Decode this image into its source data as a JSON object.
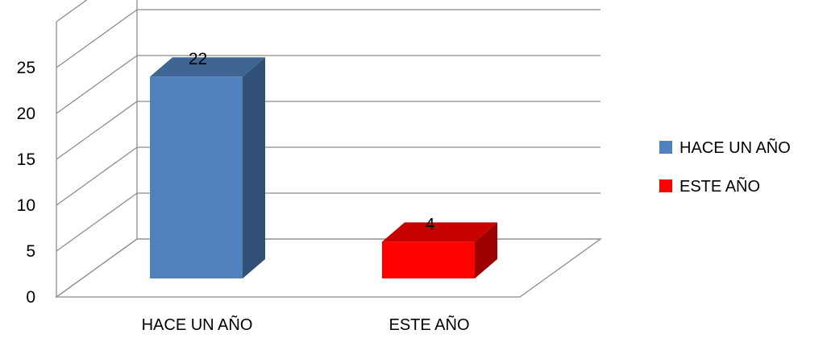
{
  "chart_data": {
    "type": "bar",
    "style": "3d-clustered-column",
    "categories": [
      "HACE UN AÑO",
      "ESTE AÑO"
    ],
    "values": [
      22,
      4
    ],
    "colors": [
      "#4f81bd",
      "#ff0000"
    ],
    "legend": [
      {
        "label": "HACE UN AÑO",
        "color": "#4f81bd"
      },
      {
        "label": "ESTE AÑO",
        "color": "#ff0000"
      }
    ],
    "data_labels": [
      "22",
      "4"
    ],
    "y_ticks": [
      "0",
      "5",
      "10",
      "15",
      "20",
      "25"
    ],
    "y_tick_values": [
      0,
      5,
      10,
      15,
      20,
      25
    ],
    "ylim": [
      0,
      30
    ],
    "grid": true,
    "legend_position": "right",
    "title": "",
    "xlabel": "",
    "ylabel": ""
  }
}
